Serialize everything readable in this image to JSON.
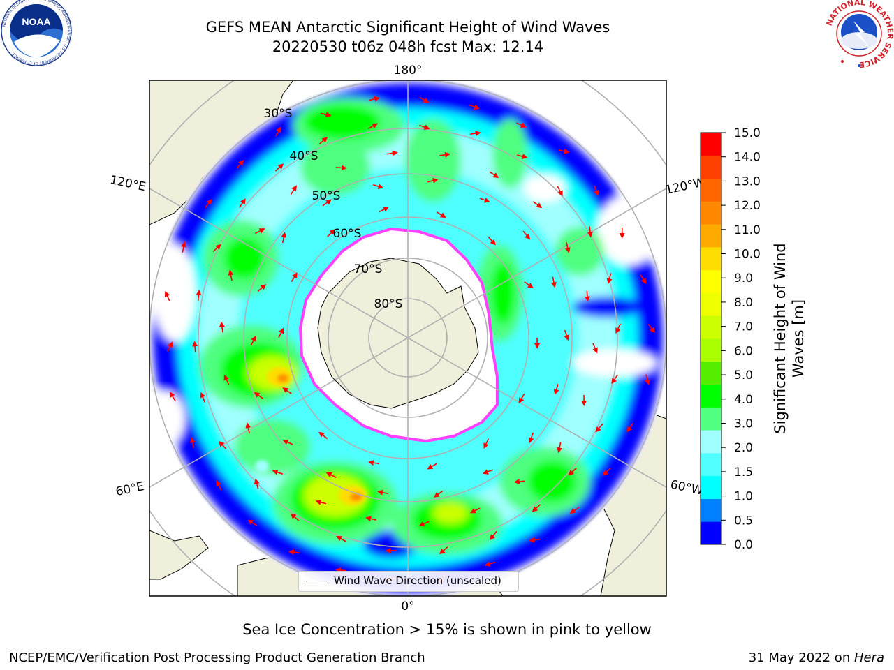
{
  "title": {
    "line1": "GEFS MEAN Antarctic Significant Height of Wind Waves",
    "line2": "20220530 t06z 048h fcst   Max: 12.14"
  },
  "logos": {
    "noaa_text": "NOAA",
    "noaa_ring": "NATIONAL OCEANIC AND ATMOSPHERIC ADMINISTRATION · U.S. DEPARTMENT OF COMMERCE",
    "nws_ring": "NATIONAL WEATHER SERVICE"
  },
  "map": {
    "longitude_labels": {
      "top": "180°",
      "bottom": "0°",
      "upper_left": "120°E",
      "lower_left": "60°E",
      "upper_right": "120°W",
      "lower_right": "60°W"
    },
    "latitude_labels": [
      "30°S",
      "40°S",
      "50°S",
      "60°S",
      "70°S",
      "80°S"
    ],
    "legend": "Wind Wave Direction (unscaled)"
  },
  "colorbar": {
    "label": "Significant Height of Wind Waves [m]",
    "ticks": [
      "15.0",
      "14.0",
      "13.0",
      "12.0",
      "11.0",
      "10.0",
      "9.0",
      "8.0",
      "7.0",
      "6.0",
      "5.0",
      "4.0",
      "3.0",
      "2.0",
      "1.5",
      "1.0",
      "0.5",
      "0.0"
    ],
    "colors": [
      "#0000ff",
      "#0080ff",
      "#00ffff",
      "#50ffff",
      "#a0ffff",
      "#50ff80",
      "#00ff00",
      "#55ee00",
      "#aaff00",
      "#ccff00",
      "#eeff00",
      "#ffff00",
      "#ffdd00",
      "#ffaa00",
      "#ff8800",
      "#ff6600",
      "#ff4000",
      "#ff0000"
    ]
  },
  "caption": "Sea Ice Concentration > 15% is shown in pink to yellow",
  "footer": {
    "left": "NCEP/EMC/Verification Post Processing Product Generation Branch",
    "right_date": "31 May 2022 on ",
    "right_machine": "Hera"
  }
}
